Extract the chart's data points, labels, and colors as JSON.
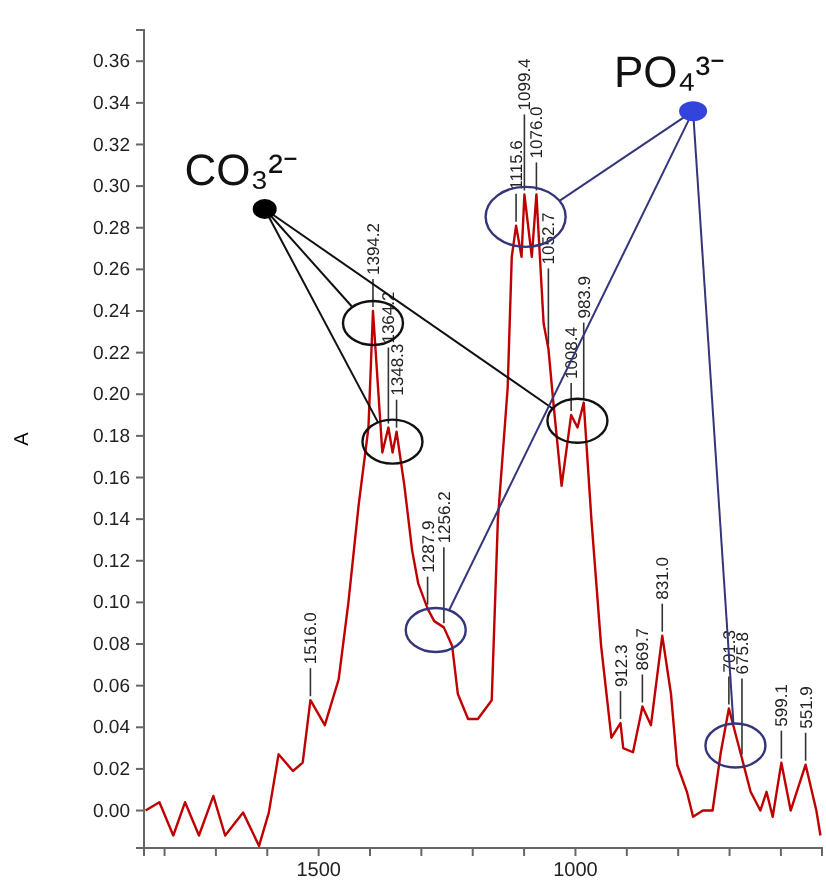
{
  "chart_data": {
    "type": "line",
    "ylabel": "A",
    "x": [
      1837,
      1810,
      1783,
      1760,
      1733,
      1705,
      1682,
      1647,
      1616,
      1597,
      1578,
      1550,
      1531,
      1516,
      1488,
      1461,
      1442,
      1422,
      1403,
      1394.2,
      1376,
      1364.2,
      1356,
      1348.3,
      1333,
      1318,
      1306,
      1287.9,
      1275,
      1256.2,
      1240,
      1229,
      1209,
      1190,
      1163,
      1151,
      1132,
      1124,
      1115.6,
      1105,
      1099.4,
      1085,
      1076.0,
      1062,
      1052.7,
      1043,
      1027,
      1008.4,
      996,
      983.9,
      969,
      950,
      930,
      912.3,
      907,
      888,
      872,
      869.7,
      853,
      831.0,
      814,
      802,
      783,
      771,
      752,
      733,
      717,
      701.3,
      675.8,
      659,
      640,
      628,
      616,
      599.1,
      581,
      551.9,
      531,
      523
    ],
    "series": [
      {
        "color": "#c00000",
        "values": [
          0.0,
          0.004,
          -0.012,
          0.004,
          -0.012,
          0.007,
          -0.012,
          -0.001,
          -0.017,
          -0.001,
          0.027,
          0.019,
          0.023,
          0.053,
          0.041,
          0.063,
          0.1,
          0.147,
          0.184,
          0.24,
          0.172,
          0.184,
          0.172,
          0.182,
          0.156,
          0.125,
          0.109,
          0.097,
          0.091,
          0.088,
          0.079,
          0.056,
          0.044,
          0.044,
          0.053,
          0.14,
          0.203,
          0.266,
          0.281,
          0.266,
          0.296,
          0.266,
          0.296,
          0.234,
          0.222,
          0.196,
          0.156,
          0.19,
          0.184,
          0.196,
          0.14,
          0.079,
          0.035,
          0.042,
          0.03,
          0.028,
          0.047,
          0.05,
          0.041,
          0.084,
          0.056,
          0.022,
          0.009,
          -0.003,
          0.0,
          0.0,
          0.028,
          0.049,
          0.025,
          0.009,
          0.0,
          0.009,
          -0.003,
          0.023,
          0.0,
          0.022,
          0.0,
          -0.012
        ]
      }
    ],
    "xlim": [
      1840,
      520
    ],
    "xticks": [
      {
        "value": 1800,
        "label": null
      },
      {
        "value": 1700,
        "label": null
      },
      {
        "value": 1600,
        "label": null
      },
      1500,
      {
        "value": 1400,
        "label": null
      },
      {
        "value": 1300,
        "label": null
      },
      {
        "value": 1200,
        "label": null
      },
      {
        "value": 1100,
        "label": null
      },
      1000,
      {
        "value": 900,
        "label": null
      },
      {
        "value": 800,
        "label": null
      },
      {
        "value": 700,
        "label": null
      },
      {
        "value": 600,
        "label": null
      }
    ],
    "ylim": [
      -0.018,
      0.375
    ],
    "yticks": [
      {
        "value": 0,
        "label": "0.00"
      },
      {
        "value": 0.02,
        "label": "0.02"
      },
      {
        "value": 0.04,
        "label": "0.04"
      },
      {
        "value": 0.06,
        "label": "0.06"
      },
      {
        "value": 0.08,
        "label": "0.08"
      },
      {
        "value": 0.1,
        "label": "0.10"
      },
      {
        "value": 0.12,
        "label": "0.12"
      },
      {
        "value": 0.14,
        "label": "0.14"
      },
      {
        "value": 0.16,
        "label": "0.16"
      },
      {
        "value": 0.18,
        "label": "0.18"
      },
      {
        "value": 0.2,
        "label": "0.20"
      },
      {
        "value": 0.22,
        "label": "0.22"
      },
      {
        "value": 0.24,
        "label": "0.24"
      },
      {
        "value": 0.26,
        "label": "0.26"
      },
      {
        "value": 0.28,
        "label": "0.28"
      },
      {
        "value": 0.3,
        "label": "0.30"
      },
      {
        "value": 0.32,
        "label": "0.32"
      },
      {
        "value": 0.34,
        "label": "0.34"
      },
      {
        "value": 0.36,
        "label": "0.36"
      }
    ],
    "annotations": [
      {
        "text": "CO₃²⁻",
        "x": 1605,
        "y": 0.289
      },
      {
        "text": "PO₄³⁻",
        "x": 771,
        "y": 0.336
      },
      {
        "text": "1516.0",
        "x": 1516,
        "y": 0.053
      },
      {
        "text": "1394.2",
        "x": 1394.2,
        "y": 0.24
      },
      {
        "text": "1364.2",
        "x": 1364.2,
        "y": 0.184
      },
      {
        "text": "1348.3",
        "x": 1348.3,
        "y": 0.182
      },
      {
        "text": "1287.9",
        "x": 1287.9,
        "y": 0.097
      },
      {
        "text": "1256.2",
        "x": 1256.2,
        "y": 0.088
      },
      {
        "text": "1115.6",
        "x": 1115.6,
        "y": 0.281
      },
      {
        "text": "1099.4",
        "x": 1099.4,
        "y": 0.296
      },
      {
        "text": "1076.0",
        "x": 1076.0,
        "y": 0.296
      },
      {
        "text": "1052.7",
        "x": 1052.7,
        "y": 0.222
      },
      {
        "text": "1008.4",
        "x": 1008.4,
        "y": 0.19
      },
      {
        "text": "983.9",
        "x": 983.9,
        "y": 0.196
      },
      {
        "text": "912.3",
        "x": 912.3,
        "y": 0.042
      },
      {
        "text": "869.7",
        "x": 869.7,
        "y": 0.05
      },
      {
        "text": "831.0",
        "x": 831.0,
        "y": 0.084
      },
      {
        "text": "701.3",
        "x": 701.3,
        "y": 0.049
      },
      {
        "text": "675.8",
        "x": 675.8,
        "y": 0.025
      },
      {
        "text": "599.1",
        "x": 599.1,
        "y": 0.023
      },
      {
        "text": "551.9",
        "x": 551.9,
        "y": 0.022
      }
    ]
  }
}
